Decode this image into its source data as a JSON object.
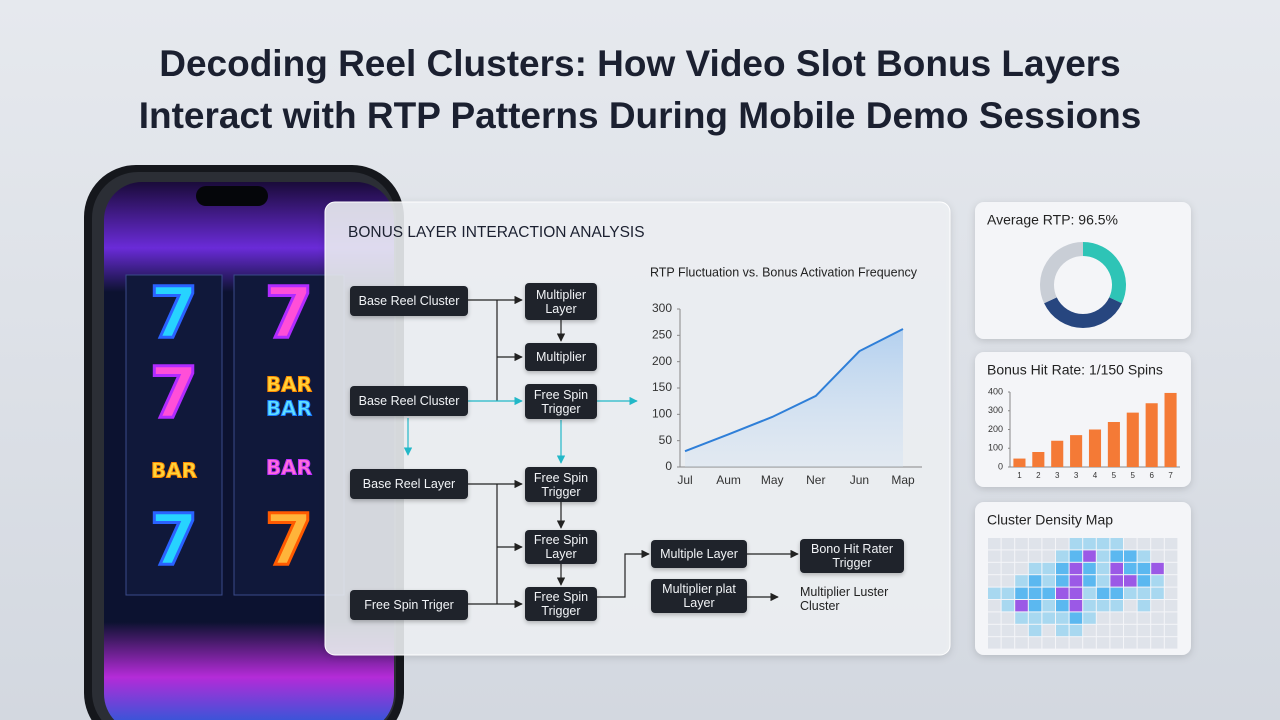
{
  "title": "Decoding Reel Clusters: How Video Slot Bonus Layers Interact with RTP Patterns During Mobile Demo Sessions",
  "phone": {
    "reels": [
      [
        "7",
        "7",
        "BAR",
        "7"
      ],
      [
        "7",
        "BAR",
        "BAR",
        "BAR",
        "7"
      ]
    ]
  },
  "panel": {
    "title": "BONUS LAYER INTERACTION ANALYSIS",
    "nodes": [
      "Base Reel Cluster",
      "Multiplier Layer",
      "Multiplier",
      "Base Reel Cluster",
      "Free Spin Trigger",
      "Base Reel Layer",
      "Free Spin Trigger",
      "Free Spin Layer",
      "Multiple Layer",
      "Bono Hit Rater Trigger",
      "Free Spin Triger",
      "Free Spin Trigger",
      "Multiplier plat Layer",
      "Multiplier Luster Cluster"
    ]
  },
  "chart_data": [
    {
      "type": "line",
      "title": "RTP Fluctuation vs. Bonus Activation Frequency",
      "categories": [
        "Jul",
        "Aum",
        "May",
        "Ner",
        "Jun",
        "Map"
      ],
      "values": [
        30,
        62,
        95,
        135,
        220,
        262
      ],
      "color": "#2f7fd8",
      "ylim": [
        0,
        300
      ],
      "yticks": [
        0,
        50,
        100,
        150,
        200,
        250,
        300
      ]
    },
    {
      "type": "pie",
      "title": "Average RTP: 96.5%",
      "values": [
        32,
        36,
        32
      ],
      "colors": [
        "#2ec4b6",
        "#27467f",
        "#c9ced6"
      ]
    },
    {
      "type": "bar",
      "title": "Bonus Hit Rate: 1/150 Spins",
      "categories": [
        "1",
        "2",
        "3",
        "3",
        "4",
        "5",
        "5",
        "6",
        "7"
      ],
      "values": [
        45,
        80,
        140,
        170,
        200,
        240,
        290,
        340,
        395
      ],
      "color": "#f47a36",
      "ylim": [
        0,
        400
      ],
      "yticks": [
        0,
        100,
        200,
        300,
        400
      ]
    },
    {
      "type": "heatmap",
      "title": "Cluster Density Map",
      "colors": [
        "#dfe3ea",
        "#a8d8f0",
        "#5bb8f0",
        "#9b59e6"
      ],
      "values": [
        [
          0,
          0,
          0,
          0,
          0,
          0,
          1,
          1,
          1,
          1,
          0,
          0,
          0,
          0
        ],
        [
          0,
          0,
          0,
          0,
          0,
          1,
          2,
          3,
          1,
          2,
          2,
          1,
          0,
          0
        ],
        [
          0,
          0,
          0,
          1,
          1,
          2,
          3,
          2,
          1,
          3,
          2,
          2,
          3,
          0
        ],
        [
          0,
          0,
          1,
          2,
          1,
          2,
          3,
          2,
          1,
          3,
          3,
          2,
          1,
          0
        ],
        [
          1,
          1,
          2,
          2,
          2,
          3,
          3,
          1,
          2,
          2,
          1,
          1,
          1,
          0
        ],
        [
          0,
          1,
          3,
          2,
          1,
          2,
          3,
          1,
          1,
          1,
          0,
          1,
          0,
          0
        ],
        [
          0,
          0,
          1,
          1,
          1,
          1,
          2,
          1,
          0,
          0,
          0,
          0,
          0,
          0
        ],
        [
          0,
          0,
          0,
          1,
          0,
          1,
          1,
          0,
          0,
          0,
          0,
          0,
          0,
          0
        ],
        [
          0,
          0,
          0,
          0,
          0,
          0,
          0,
          0,
          0,
          0,
          0,
          0,
          0,
          0
        ]
      ]
    }
  ]
}
